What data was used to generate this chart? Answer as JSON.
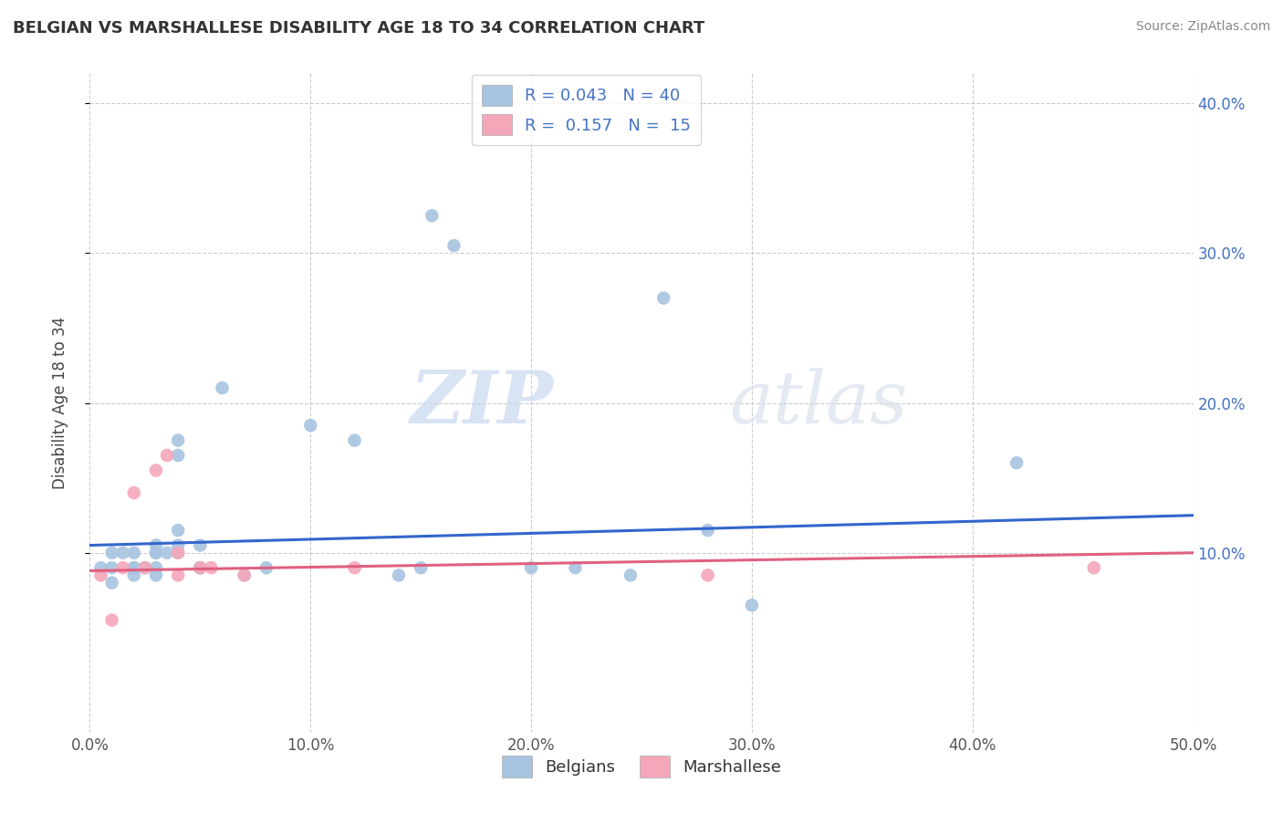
{
  "title": "BELGIAN VS MARSHALLESE DISABILITY AGE 18 TO 34 CORRELATION CHART",
  "source": "Source: ZipAtlas.com",
  "ylabel": "Disability Age 18 to 34",
  "xlim": [
    0.0,
    0.5
  ],
  "ylim": [
    -0.02,
    0.42
  ],
  "xtick_labels": [
    "0.0%",
    "10.0%",
    "20.0%",
    "30.0%",
    "40.0%",
    "50.0%"
  ],
  "xtick_vals": [
    0.0,
    0.1,
    0.2,
    0.3,
    0.4,
    0.5
  ],
  "ytick_labels": [
    "40.0%",
    "30.0%",
    "20.0%",
    "10.0%"
  ],
  "ytick_vals": [
    0.4,
    0.3,
    0.2,
    0.1
  ],
  "belgian_R": "0.043",
  "belgian_N": "40",
  "marshallese_R": "0.157",
  "marshallese_N": "15",
  "belgian_color": "#a8c4e0",
  "marshallese_color": "#f4a7b9",
  "trendline_belgian_color": "#3366cc",
  "trendline_marshallese_color": "#e06080",
  "watermark_zip": "ZIP",
  "watermark_atlas": "atlas",
  "background_color": "#ffffff",
  "grid_color": "#cccccc",
  "belgian_x": [
    0.005,
    0.01,
    0.01,
    0.01,
    0.015,
    0.02,
    0.02,
    0.02,
    0.02,
    0.025,
    0.03,
    0.03,
    0.03,
    0.03,
    0.03,
    0.035,
    0.04,
    0.04,
    0.04,
    0.04,
    0.04,
    0.05,
    0.05,
    0.05,
    0.06,
    0.07,
    0.08,
    0.1,
    0.12,
    0.14,
    0.15,
    0.155,
    0.165,
    0.2,
    0.22,
    0.245,
    0.26,
    0.28,
    0.3,
    0.42
  ],
  "belgian_y": [
    0.09,
    0.1,
    0.09,
    0.08,
    0.1,
    0.1,
    0.09,
    0.09,
    0.085,
    0.09,
    0.105,
    0.1,
    0.1,
    0.09,
    0.085,
    0.1,
    0.115,
    0.1,
    0.105,
    0.165,
    0.175,
    0.105,
    0.09,
    0.09,
    0.21,
    0.085,
    0.09,
    0.185,
    0.175,
    0.085,
    0.09,
    0.325,
    0.305,
    0.09,
    0.09,
    0.085,
    0.27,
    0.115,
    0.065,
    0.16
  ],
  "marshallese_x": [
    0.005,
    0.01,
    0.015,
    0.02,
    0.025,
    0.03,
    0.035,
    0.04,
    0.04,
    0.05,
    0.055,
    0.07,
    0.12,
    0.28,
    0.455
  ],
  "marshallese_y": [
    0.085,
    0.055,
    0.09,
    0.14,
    0.09,
    0.155,
    0.165,
    0.1,
    0.085,
    0.09,
    0.09,
    0.085,
    0.09,
    0.085,
    0.09
  ],
  "trendline_b_x0": 0.0,
  "trendline_b_y0": 0.105,
  "trendline_b_x1": 0.5,
  "trendline_b_y1": 0.125,
  "trendline_m_x0": 0.0,
  "trendline_m_y0": 0.088,
  "trendline_m_x1": 0.5,
  "trendline_m_y1": 0.1
}
